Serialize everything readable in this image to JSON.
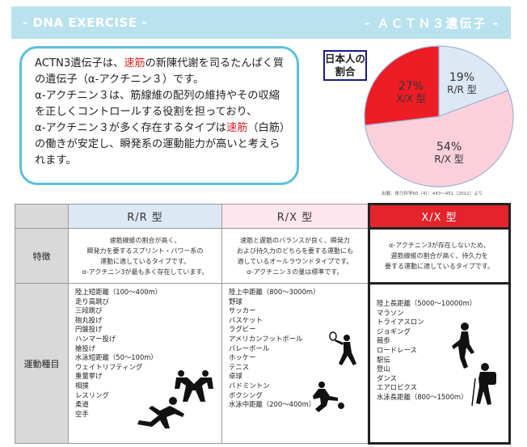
{
  "header": {
    "left": "- DNA EXERCISE -",
    "right": "- ＡＣＴＮ３遺伝子 -"
  },
  "intro": {
    "p1a": "ACTN3遺伝子は、",
    "p1red": "速筋",
    "p1b": "の新陳代謝を司るたんぱく質の遺伝子（α-アクチニン３）です。",
    "p2": "α-アクチニン３は、筋線維の配列の維持やその収縮を正しくコントロールする役割を担っており、",
    "p3a": "α-アクチニン３が多く存在するタイプは",
    "p3red": "速筋",
    "p3b": "（白筋）の働きが安定し、瞬発系の運動能力が高いと考えられます。"
  },
  "pie_label": "日本人の割合",
  "chart_data": {
    "type": "pie",
    "categories": [
      "R/R 型",
      "R/X 型",
      "X/X 型"
    ],
    "values": [
      19,
      54,
      27
    ],
    "labels_pct": [
      "19%",
      "54%",
      "27%"
    ],
    "colors": [
      "#dde8f5",
      "#fbd0dc",
      "#ee1c25"
    ]
  },
  "source": "出展：体力科学60（4）：443〜451（2011）より",
  "table": {
    "headers": {
      "rr": "R/R 型",
      "rx": "R/X 型",
      "xx": "X/X 型"
    },
    "feature_label": "特徴",
    "sport_label": "運動種目",
    "features": {
      "rr": [
        "速筋線維の割合が高く、",
        "瞬発力を要するスプリント・パワー系の",
        "運動に適しているタイプです。",
        "α-アクチニン3が最も多く存在しています。"
      ],
      "rx": [
        "速筋と遅筋のバランスが良く、瞬発力",
        "および持久力のどちらを要する運動にも",
        "適しているオールラウンドタイプです。",
        "α-アクチニン３の量は標準です。"
      ],
      "xx": [
        "α-アクチニン3が存在しないため、",
        "遅筋線維の割合が高く、持久力を",
        "要する運動に適しているタイプです。"
      ]
    },
    "sports": {
      "rr": [
        "陸上短距離（100〜400m）",
        "走り高跳び",
        "三段跳び",
        "砲丸投げ",
        "円盤投げ",
        "ハンマー投げ",
        "槍投げ",
        "水泳短距離（50〜100m）",
        "ウェイトリフティング",
        "重量挙げ",
        "相撲",
        "レスリング",
        "柔道",
        "空手"
      ],
      "rx": [
        "陸上中距離（800〜3000m）",
        "野球",
        "サッカー",
        "バスケット",
        "ラグビー",
        "アメリカンフットボール",
        "バレーボール",
        "ホッケー",
        "テニス",
        "卓球",
        "バドミントン",
        "ボクシング",
        "水泳中距離（200〜400m）"
      ],
      "xx": [
        "陸上長距離（5000〜10000m）",
        "マラソン",
        "トライアスロン",
        "ジョギング",
        "競歩",
        "ロードレース",
        "駅伝",
        "登山",
        "ダンス",
        "エアロビクス",
        "水泳長距離（800〜1500m）"
      ]
    }
  }
}
